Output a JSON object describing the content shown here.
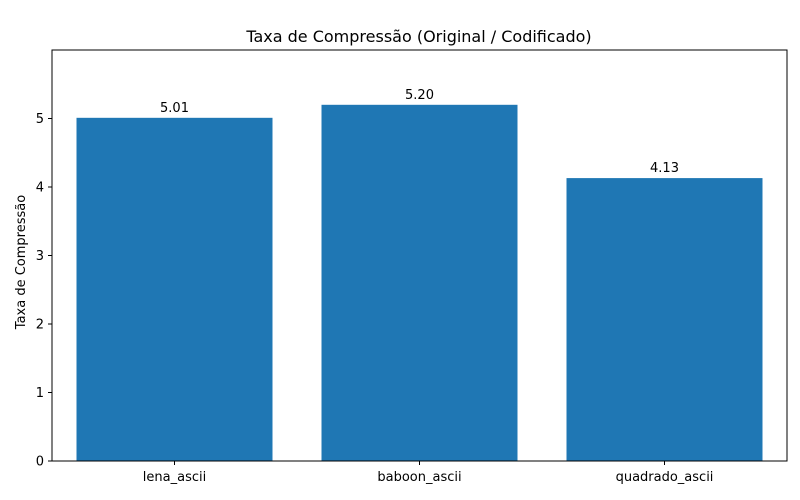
{
  "chart_data": {
    "type": "bar",
    "title": "Taxa de Compressão (Original / Codificado)",
    "xlabel": "",
    "ylabel": "Taxa de Compressão",
    "categories": [
      "lena_ascii",
      "baboon_ascii",
      "quadrado_ascii"
    ],
    "values": [
      5.01,
      5.2,
      4.13
    ],
    "data_labels": [
      "5.01",
      "5.20",
      "4.13"
    ],
    "ylim": [
      0,
      6
    ],
    "yticks": [
      0,
      1,
      2,
      3,
      4,
      5
    ],
    "bar_color": "#1f77b4",
    "grid": false,
    "legend": "none"
  }
}
